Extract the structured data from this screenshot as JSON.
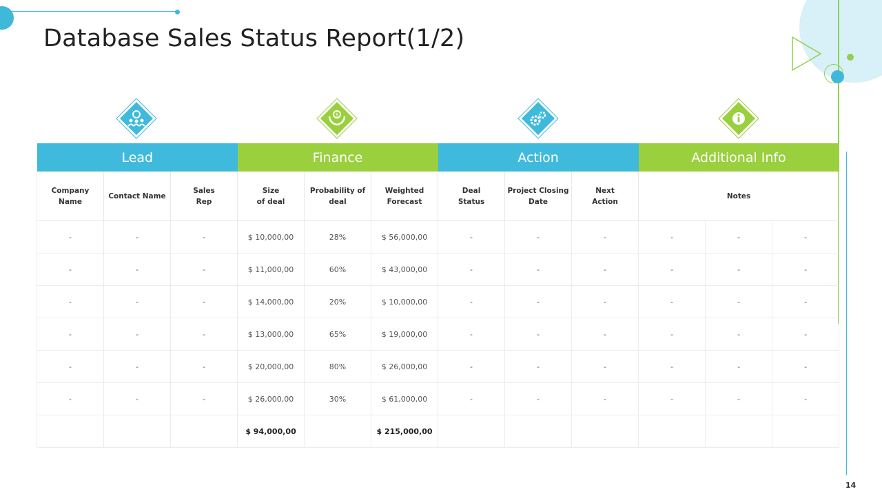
{
  "page": {
    "title": "Database Sales Status Report(1/2)",
    "page_number": "14"
  },
  "colors": {
    "blue": "#3fbadc",
    "green": "#9acf3e"
  },
  "categories": [
    {
      "label": "Lead",
      "color": "blue",
      "icon": "people-network-icon"
    },
    {
      "label": "Finance",
      "color": "green",
      "icon": "money-hand-icon"
    },
    {
      "label": "Action",
      "color": "blue",
      "icon": "gears-icon"
    },
    {
      "label": "Additional Info",
      "color": "green",
      "icon": "info-icon"
    }
  ],
  "columns": [
    "Company\nName",
    "Contact Name",
    "Sales\nRep",
    "Size\nof deal",
    "Probability of\ndeal",
    "Weighted\nForecast",
    "Deal\nStatus",
    "Project Closing\nDate",
    "Next\nAction",
    "Notes"
  ],
  "rows": [
    [
      "-",
      "-",
      "-",
      "$ 10,000,00",
      "28%",
      "$ 56,000,00",
      "-",
      "-",
      "-",
      "-",
      "-",
      "-"
    ],
    [
      "-",
      "-",
      "-",
      "$ 11,000,00",
      "60%",
      "$ 43,000,00",
      "-",
      "-",
      "-",
      "-",
      "-",
      "-"
    ],
    [
      "-",
      "-",
      "-",
      "$ 14,000,00",
      "20%",
      "$ 10,000,00",
      "-",
      "-",
      "-",
      "-",
      "-",
      "-"
    ],
    [
      "-",
      "-",
      "-",
      "$ 13,000,00",
      "65%",
      "$ 19,000,00",
      "-",
      "-",
      "-",
      "-",
      "-",
      "-"
    ],
    [
      "-",
      "-",
      "-",
      "$ 20,000,00",
      "80%",
      "$ 26,000,00",
      "-",
      "-",
      "-",
      "-",
      "-",
      "-"
    ],
    [
      "-",
      "-",
      "-",
      "$ 26,000,00",
      "30%",
      "$ 61,000,00",
      "-",
      "-",
      "-",
      "-",
      "-",
      "-"
    ]
  ],
  "totals": [
    "",
    "",
    "",
    "$ 94,000,00",
    "",
    "$ 215,000,00",
    "",
    "",
    "",
    "",
    "",
    ""
  ]
}
